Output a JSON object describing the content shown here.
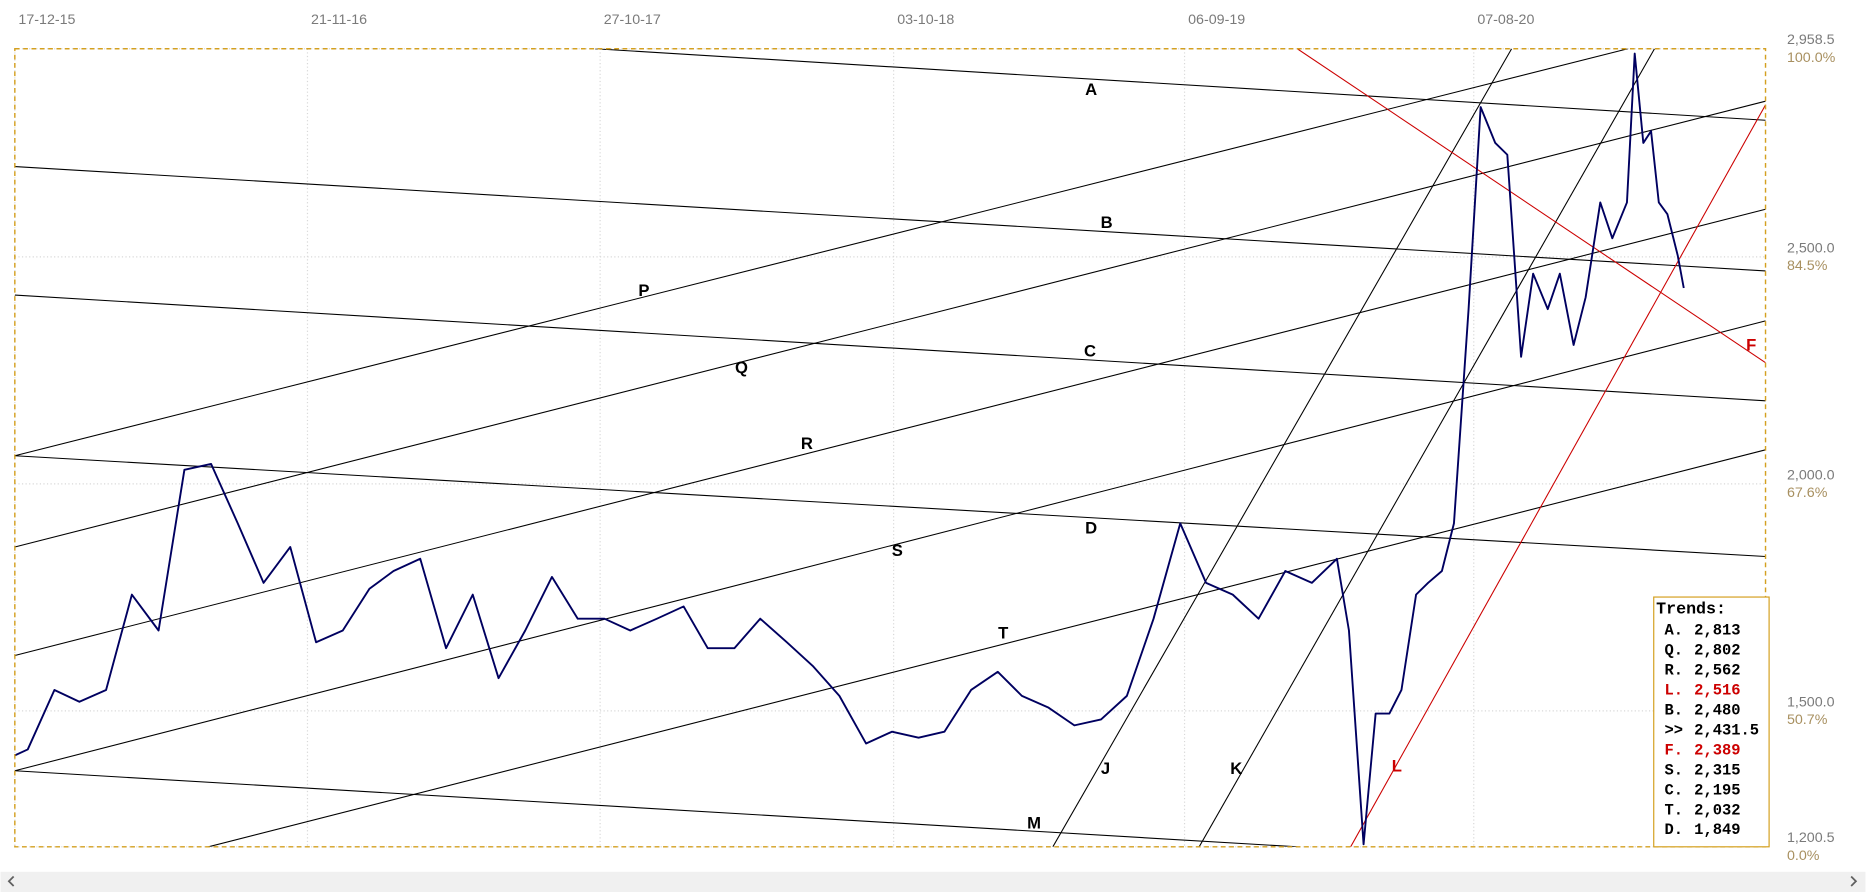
{
  "chart_data": {
    "type": "line",
    "color": "#000060",
    "xlim": [
      "2015-12-17",
      "2021-07-12"
    ],
    "xticks": [
      {
        "value": "2015-12-17",
        "label": "17-12-15"
      },
      {
        "value": "2016-11-21",
        "label": "21-11-16"
      },
      {
        "value": "2017-10-27",
        "label": "27-10-17"
      },
      {
        "value": "2018-10-03",
        "label": "03-10-18"
      },
      {
        "value": "2019-09-06",
        "label": "06-09-19"
      },
      {
        "value": "2020-08-07",
        "label": "07-08-20"
      }
    ],
    "ylim": [
      1200.5,
      2958.5
    ],
    "yticks": [
      {
        "value": 1200.5,
        "label": "1,200.5"
      },
      {
        "value": 1500,
        "label": "1,500.0"
      },
      {
        "value": 2000,
        "label": "2,000.0"
      },
      {
        "value": 2500,
        "label": "2,500.0"
      },
      {
        "value": 2958.5,
        "label": "2,958.5"
      }
    ],
    "ytick_percent_labels": [
      "0.0%",
      "50.7%",
      "67.6%",
      "84.5%",
      "100.0%"
    ],
    "grid": true,
    "x": [
      "2015-12-17",
      "2016-01-01",
      "2016-02-01",
      "2016-03-01",
      "2016-04-01",
      "2016-05-01",
      "2016-06-01",
      "2016-07-01",
      "2016-08-01",
      "2016-09-01",
      "2016-10-01",
      "2016-11-01",
      "2016-12-01",
      "2017-01-01",
      "2017-02-01",
      "2017-03-01",
      "2017-04-01",
      "2017-05-01",
      "2017-06-01",
      "2017-07-01",
      "2017-08-01",
      "2017-09-01",
      "2017-10-01",
      "2017-11-01",
      "2017-12-01",
      "2018-01-01",
      "2018-02-01",
      "2018-03-01",
      "2018-04-01",
      "2018-05-01",
      "2018-06-01",
      "2018-07-01",
      "2018-08-01",
      "2018-09-01",
      "2018-10-01",
      "2018-11-01",
      "2018-12-01",
      "2019-01-01",
      "2019-02-01",
      "2019-03-01",
      "2019-04-01",
      "2019-05-01",
      "2019-06-01",
      "2019-07-01",
      "2019-08-01",
      "2019-09-01",
      "2019-10-01",
      "2019-11-01",
      "2019-12-01",
      "2020-01-01",
      "2020-02-01",
      "2020-03-01",
      "2020-03-15",
      "2020-04-01",
      "2020-04-15",
      "2020-05-01",
      "2020-05-15",
      "2020-06-01",
      "2020-06-15",
      "2020-07-01",
      "2020-07-15",
      "2020-08-01",
      "2020-08-15",
      "2020-09-01",
      "2020-09-15",
      "2020-10-01",
      "2020-10-15",
      "2020-11-01",
      "2020-11-15",
      "2020-12-01",
      "2020-12-15",
      "2021-01-01",
      "2021-01-15",
      "2021-02-01",
      "2021-02-10",
      "2021-02-20",
      "2021-03-01",
      "2021-03-10",
      "2021-03-20",
      "2021-04-01",
      "2021-04-08"
    ],
    "values": [
      1402,
      1415,
      1546,
      1520,
      1546,
      1756,
      1677,
      2031,
      2044,
      1913,
      1782,
      1861,
      1651,
      1677,
      1769,
      1808,
      1835,
      1638,
      1756,
      1572,
      1677,
      1795,
      1703,
      1703,
      1677,
      1703,
      1730,
      1638,
      1638,
      1703,
      1651,
      1599,
      1533,
      1428,
      1454,
      1441,
      1454,
      1546,
      1586,
      1533,
      1507,
      1468,
      1481,
      1533,
      1703,
      1913,
      1782,
      1756,
      1703,
      1808,
      1782,
      1835,
      1677,
      1206,
      1494,
      1494,
      1546,
      1756,
      1782,
      1808,
      1913,
      2385,
      2830,
      2751,
      2725,
      2280,
      2463,
      2385,
      2463,
      2306,
      2411,
      2620,
      2541,
      2620,
      2948,
      2751,
      2777,
      2620,
      2594,
      2503,
      2431.5
    ],
    "trendlines": [
      {
        "name": "A",
        "color": "#000000",
        "x": [
          "2017-10-21",
          "2021-07-12"
        ],
        "values": [
          2958.5,
          2801
        ]
      },
      {
        "name": "B",
        "color": "#000000",
        "x": [
          "2015-12-17",
          "2021-07-12"
        ],
        "values": [
          2699,
          2469
        ]
      },
      {
        "name": "C",
        "color": "#000000",
        "x": [
          "2015-12-17",
          "2021-07-12"
        ],
        "values": [
          2416,
          2183
        ]
      },
      {
        "name": "D",
        "color": "#000000",
        "x": [
          "2015-12-17",
          "2021-07-12"
        ],
        "values": [
          2062,
          1840
        ]
      },
      {
        "name": "M",
        "color": "#000000",
        "x": [
          "2015-12-17",
          "2020-01-15"
        ],
        "values": [
          1368,
          1200.5
        ]
      },
      {
        "name": "P",
        "color": "#000000",
        "x": [
          "2015-12-17",
          "2021-02-02"
        ],
        "values": [
          2062,
          2958.5
        ]
      },
      {
        "name": "Q",
        "color": "#000000",
        "x": [
          "2015-12-17",
          "2021-07-12"
        ],
        "values": [
          1861,
          2843
        ]
      },
      {
        "name": "R",
        "color": "#000000",
        "x": [
          "2015-12-17",
          "2021-07-12"
        ],
        "values": [
          1622,
          2605
        ]
      },
      {
        "name": "S",
        "color": "#000000",
        "x": [
          "2015-12-17",
          "2021-07-12"
        ],
        "values": [
          1368,
          2359
        ]
      },
      {
        "name": "T",
        "color": "#000000",
        "x": [
          "2016-07-29",
          "2021-07-12"
        ],
        "values": [
          1200.5,
          2075
        ]
      },
      {
        "name": "J",
        "color": "#000000",
        "x": [
          "2019-04-06",
          "2020-09-20"
        ],
        "values": [
          1200.5,
          2958.5
        ]
      },
      {
        "name": "K",
        "color": "#000000",
        "x": [
          "2019-09-23",
          "2021-03-05"
        ],
        "values": [
          1200.5,
          2958.5
        ]
      },
      {
        "name": "L",
        "color": "#cc0000",
        "x": [
          "2020-03-17",
          "2021-07-12"
        ],
        "values": [
          1200.5,
          2835
        ]
      },
      {
        "name": "F",
        "color": "#cc0000",
        "x": [
          "2020-01-15",
          "2021-07-12"
        ],
        "values": [
          2958.5,
          2267
        ]
      }
    ],
    "trends_panel": {
      "title": "Trends:",
      "rows": [
        {
          "key": "A.",
          "value": "2,813",
          "color": "#000000"
        },
        {
          "key": "Q.",
          "value": "2,802",
          "color": "#000000"
        },
        {
          "key": "R.",
          "value": "2,562",
          "color": "#000000"
        },
        {
          "key": "L.",
          "value": "2,516",
          "color": "#cc0000"
        },
        {
          "key": "B.",
          "value": "2,480",
          "color": "#000000"
        },
        {
          "key": ">>",
          "value": "2,431.5",
          "color": "#000000"
        },
        {
          "key": "F.",
          "value": "2,389",
          "color": "#cc0000"
        },
        {
          "key": "S.",
          "value": "2,315",
          "color": "#000000"
        },
        {
          "key": "C.",
          "value": "2,195",
          "color": "#000000"
        },
        {
          "key": "T.",
          "value": "2,032",
          "color": "#000000"
        },
        {
          "key": "D.",
          "value": "1,849",
          "color": "#000000"
        }
      ]
    }
  }
}
